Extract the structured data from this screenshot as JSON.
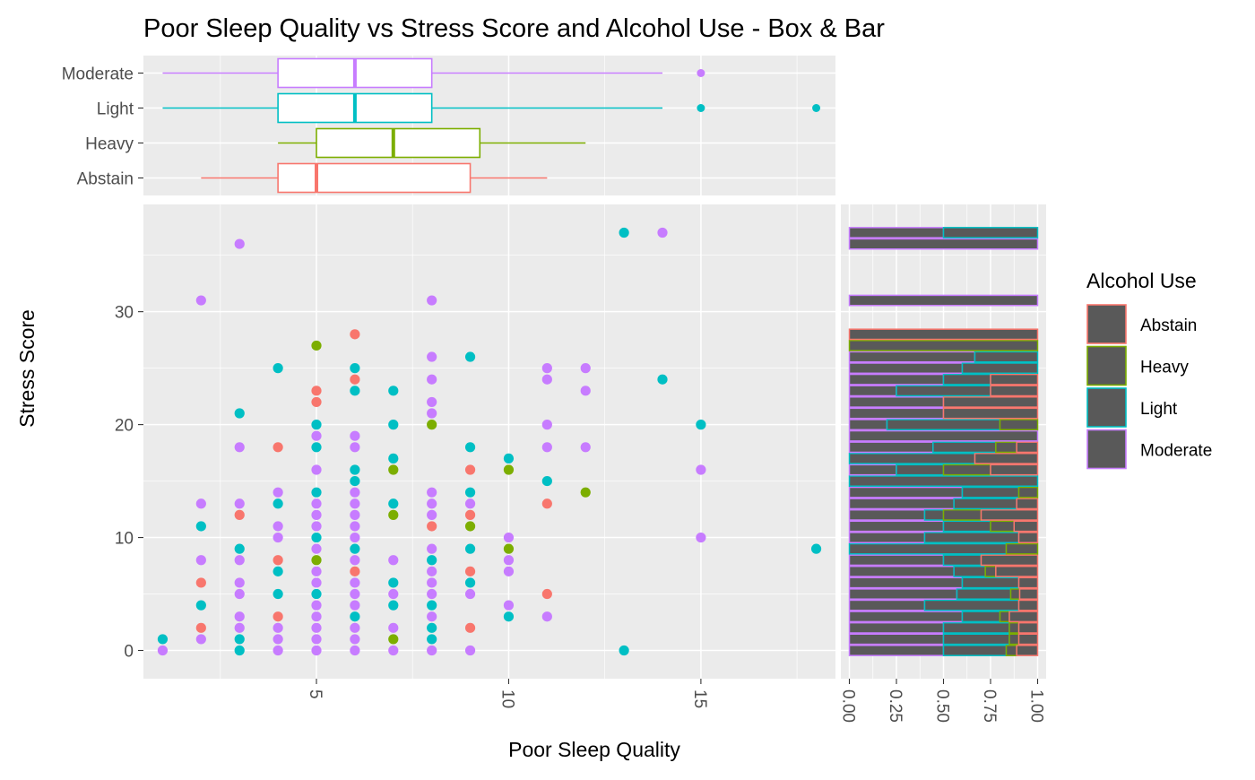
{
  "chart_data": {
    "type": "scatter",
    "title": "Poor Sleep Quality vs Stress Score and Alcohol Use - Box & Bar",
    "xlabel": "Poor Sleep Quality",
    "ylabel": "Stress Score",
    "xlim": [
      0.5,
      18.5
    ],
    "ylim": [
      -2.5,
      39.5
    ],
    "x_ticks": [
      5,
      10,
      15
    ],
    "x_tick_labels": [
      "5",
      "10",
      "15"
    ],
    "y_ticks": [
      0,
      10,
      20,
      30
    ],
    "y_tick_labels": [
      "0",
      "10",
      "20",
      "30"
    ],
    "grid": true,
    "legend": {
      "title": "Alcohol Use",
      "position": "right",
      "entries": [
        "Abstain",
        "Heavy",
        "Light",
        "Moderate"
      ]
    },
    "colors": {
      "Abstain": "#F8766D",
      "Heavy": "#7CAE00",
      "Light": "#00BFC4",
      "Moderate": "#C77CFF",
      "bar_fill": "#595959",
      "panel": "#EBEBEB"
    },
    "series": [
      {
        "name": "Abstain",
        "points": [
          [
            2,
            2
          ],
          [
            2,
            6
          ],
          [
            3,
            12
          ],
          [
            4,
            3
          ],
          [
            4,
            8
          ],
          [
            4,
            18
          ],
          [
            5,
            22
          ],
          [
            5,
            23
          ],
          [
            6,
            7
          ],
          [
            6,
            24
          ],
          [
            6,
            28
          ],
          [
            8,
            11
          ],
          [
            9,
            2
          ],
          [
            9,
            7
          ],
          [
            9,
            12
          ],
          [
            9,
            16
          ],
          [
            11,
            5
          ],
          [
            11,
            13
          ]
        ]
      },
      {
        "name": "Heavy",
        "points": [
          [
            5,
            8
          ],
          [
            5,
            27
          ],
          [
            7,
            1
          ],
          [
            7,
            12
          ],
          [
            7,
            16
          ],
          [
            8,
            20
          ],
          [
            9,
            11
          ],
          [
            10,
            9
          ],
          [
            10,
            16
          ],
          [
            12,
            14
          ]
        ]
      },
      {
        "name": "Light",
        "points": [
          [
            1,
            1
          ],
          [
            2,
            4
          ],
          [
            2,
            11
          ],
          [
            3,
            0
          ],
          [
            3,
            1
          ],
          [
            3,
            9
          ],
          [
            3,
            21
          ],
          [
            4,
            5
          ],
          [
            4,
            7
          ],
          [
            4,
            13
          ],
          [
            4,
            25
          ],
          [
            5,
            5
          ],
          [
            5,
            10
          ],
          [
            5,
            14
          ],
          [
            5,
            18
          ],
          [
            5,
            20
          ],
          [
            6,
            3
          ],
          [
            6,
            9
          ],
          [
            6,
            15
          ],
          [
            6,
            16
          ],
          [
            6,
            23
          ],
          [
            6,
            25
          ],
          [
            7,
            4
          ],
          [
            7,
            6
          ],
          [
            7,
            13
          ],
          [
            7,
            17
          ],
          [
            7,
            20
          ],
          [
            7,
            23
          ],
          [
            8,
            1
          ],
          [
            8,
            2
          ],
          [
            8,
            4
          ],
          [
            8,
            8
          ],
          [
            9,
            6
          ],
          [
            9,
            9
          ],
          [
            9,
            14
          ],
          [
            9,
            18
          ],
          [
            9,
            26
          ],
          [
            10,
            3
          ],
          [
            10,
            17
          ],
          [
            11,
            15
          ],
          [
            13,
            0
          ],
          [
            13,
            37
          ],
          [
            14,
            24
          ],
          [
            15,
            20
          ],
          [
            18,
            9
          ]
        ]
      },
      {
        "name": "Moderate",
        "points": [
          [
            1,
            0
          ],
          [
            2,
            1
          ],
          [
            2,
            8
          ],
          [
            2,
            13
          ],
          [
            2,
            31
          ],
          [
            3,
            2
          ],
          [
            3,
            3
          ],
          [
            3,
            5
          ],
          [
            3,
            6
          ],
          [
            3,
            8
          ],
          [
            3,
            13
          ],
          [
            3,
            18
          ],
          [
            3,
            36
          ],
          [
            4,
            0
          ],
          [
            4,
            1
          ],
          [
            4,
            2
          ],
          [
            4,
            10
          ],
          [
            4,
            11
          ],
          [
            4,
            14
          ],
          [
            5,
            0
          ],
          [
            5,
            1
          ],
          [
            5,
            2
          ],
          [
            5,
            3
          ],
          [
            5,
            4
          ],
          [
            5,
            6
          ],
          [
            5,
            7
          ],
          [
            5,
            9
          ],
          [
            5,
            11
          ],
          [
            5,
            12
          ],
          [
            5,
            13
          ],
          [
            5,
            16
          ],
          [
            5,
            19
          ],
          [
            6,
            0
          ],
          [
            6,
            1
          ],
          [
            6,
            2
          ],
          [
            6,
            4
          ],
          [
            6,
            5
          ],
          [
            6,
            6
          ],
          [
            6,
            8
          ],
          [
            6,
            10
          ],
          [
            6,
            11
          ],
          [
            6,
            12
          ],
          [
            6,
            13
          ],
          [
            6,
            14
          ],
          [
            6,
            18
          ],
          [
            6,
            19
          ],
          [
            7,
            0
          ],
          [
            7,
            2
          ],
          [
            7,
            5
          ],
          [
            7,
            8
          ],
          [
            8,
            0
          ],
          [
            8,
            3
          ],
          [
            8,
            5
          ],
          [
            8,
            6
          ],
          [
            8,
            7
          ],
          [
            8,
            9
          ],
          [
            8,
            12
          ],
          [
            8,
            13
          ],
          [
            8,
            14
          ],
          [
            8,
            21
          ],
          [
            8,
            22
          ],
          [
            8,
            24
          ],
          [
            8,
            26
          ],
          [
            8,
            31
          ],
          [
            9,
            0
          ],
          [
            9,
            5
          ],
          [
            9,
            13
          ],
          [
            10,
            7
          ],
          [
            10,
            8
          ],
          [
            10,
            10
          ],
          [
            10,
            4
          ],
          [
            11,
            3
          ],
          [
            11,
            18
          ],
          [
            11,
            20
          ],
          [
            11,
            24
          ],
          [
            11,
            25
          ],
          [
            12,
            18
          ],
          [
            12,
            23
          ],
          [
            12,
            25
          ],
          [
            14,
            37
          ],
          [
            15,
            10
          ],
          [
            15,
            16
          ]
        ]
      }
    ],
    "box_panel": {
      "type": "box",
      "categories": [
        "Moderate",
        "Light",
        "Heavy",
        "Abstain"
      ],
      "boxes": [
        {
          "name": "Moderate",
          "whisker_low": 1,
          "q1": 4,
          "median": 6,
          "q3": 8,
          "whisker_high": 14,
          "outliers": [
            15
          ]
        },
        {
          "name": "Light",
          "whisker_low": 1,
          "q1": 4,
          "median": 6,
          "q3": 8,
          "whisker_high": 14,
          "outliers": [
            15,
            18
          ]
        },
        {
          "name": "Heavy",
          "whisker_low": 4,
          "q1": 5,
          "median": 7,
          "q3": 9.25,
          "whisker_high": 12,
          "outliers": []
        },
        {
          "name": "Abstain",
          "whisker_low": 2,
          "q1": 4,
          "median": 5,
          "q3": 9,
          "whisker_high": 11,
          "outliers": []
        }
      ]
    },
    "bar_panel": {
      "type": "bar",
      "orientation": "horizontal",
      "position": "fill",
      "xlim": [
        0,
        1
      ],
      "x_ticks": [
        0,
        0.25,
        0.5,
        0.75,
        1
      ],
      "x_tick_labels": [
        "0.00",
        "0.25",
        "0.50",
        "0.75",
        "1.00"
      ],
      "stack_order": [
        "Moderate",
        "Light",
        "Heavy",
        "Abstain"
      ],
      "bars": [
        {
          "y": 0,
          "counts": {
            "Moderate": 4.5,
            "Light": 3,
            "Heavy": 0.5,
            "Abstain": 1
          }
        },
        {
          "y": 1,
          "counts": {
            "Moderate": 5,
            "Light": 3.5,
            "Heavy": 0.5,
            "Abstain": 1
          }
        },
        {
          "y": 2,
          "counts": {
            "Moderate": 5,
            "Light": 3.5,
            "Heavy": 0.5,
            "Abstain": 1
          }
        },
        {
          "y": 3,
          "counts": {
            "Moderate": 6,
            "Light": 2,
            "Heavy": 0.5,
            "Abstain": 1.5
          }
        },
        {
          "y": 4,
          "counts": {
            "Moderate": 4,
            "Light": 5,
            "Heavy": 0,
            "Abstain": 1
          }
        },
        {
          "y": 5,
          "counts": {
            "Moderate": 6,
            "Light": 3,
            "Heavy": 0.5,
            "Abstain": 1
          }
        },
        {
          "y": 6,
          "counts": {
            "Moderate": 6,
            "Light": 3,
            "Heavy": 0,
            "Abstain": 1
          }
        },
        {
          "y": 7,
          "counts": {
            "Moderate": 5,
            "Light": 1.5,
            "Heavy": 0.5,
            "Abstain": 2
          }
        },
        {
          "y": 8,
          "counts": {
            "Moderate": 5,
            "Light": 2,
            "Heavy": 0,
            "Abstain": 3
          }
        },
        {
          "y": 9,
          "counts": {
            "Moderate": 0,
            "Light": 5,
            "Heavy": 1,
            "Abstain": 0
          }
        },
        {
          "y": 10,
          "counts": {
            "Moderate": 4,
            "Light": 5,
            "Heavy": 0,
            "Abstain": 1
          }
        },
        {
          "y": 11,
          "counts": {
            "Moderate": 4,
            "Light": 2,
            "Heavy": 1,
            "Abstain": 1
          }
        },
        {
          "y": 12,
          "counts": {
            "Moderate": 4,
            "Light": 1,
            "Heavy": 2,
            "Abstain": 3
          }
        },
        {
          "y": 13,
          "counts": {
            "Moderate": 5,
            "Light": 3,
            "Heavy": 0,
            "Abstain": 1
          }
        },
        {
          "y": 14,
          "counts": {
            "Moderate": 6,
            "Light": 3,
            "Heavy": 1,
            "Abstain": 0
          }
        },
        {
          "y": 15,
          "counts": {
            "Moderate": 0,
            "Light": 2,
            "Heavy": 0,
            "Abstain": 0
          }
        },
        {
          "y": 16,
          "counts": {
            "Moderate": 1,
            "Light": 1,
            "Heavy": 1,
            "Abstain": 1
          }
        },
        {
          "y": 17,
          "counts": {
            "Moderate": 0,
            "Light": 2,
            "Heavy": 0,
            "Abstain": 1
          }
        },
        {
          "y": 18,
          "counts": {
            "Moderate": 4,
            "Light": 3,
            "Heavy": 1,
            "Abstain": 1
          }
        },
        {
          "y": 19,
          "counts": {
            "Moderate": 1,
            "Light": 0,
            "Heavy": 0,
            "Abstain": 0
          }
        },
        {
          "y": 20,
          "counts": {
            "Moderate": 1,
            "Light": 3,
            "Heavy": 1,
            "Abstain": 0
          }
        },
        {
          "y": 21,
          "counts": {
            "Moderate": 2,
            "Light": 0,
            "Heavy": 0,
            "Abstain": 2
          }
        },
        {
          "y": 22,
          "counts": {
            "Moderate": 1,
            "Light": 0,
            "Heavy": 0,
            "Abstain": 1
          }
        },
        {
          "y": 23,
          "counts": {
            "Moderate": 1,
            "Light": 2,
            "Heavy": 0,
            "Abstain": 1
          }
        },
        {
          "y": 24,
          "counts": {
            "Moderate": 2,
            "Light": 1,
            "Heavy": 0,
            "Abstain": 1
          }
        },
        {
          "y": 25,
          "counts": {
            "Moderate": 3,
            "Light": 2,
            "Heavy": 0,
            "Abstain": 0
          }
        },
        {
          "y": 26,
          "counts": {
            "Moderate": 2,
            "Light": 1,
            "Heavy": 0,
            "Abstain": 0
          }
        },
        {
          "y": 27,
          "counts": {
            "Moderate": 0,
            "Light": 0,
            "Heavy": 1,
            "Abstain": 0
          }
        },
        {
          "y": 28,
          "counts": {
            "Moderate": 0,
            "Light": 0,
            "Heavy": 0,
            "Abstain": 1
          }
        },
        {
          "y": 31,
          "counts": {
            "Moderate": 2,
            "Light": 0,
            "Heavy": 0,
            "Abstain": 0
          }
        },
        {
          "y": 36,
          "counts": {
            "Moderate": 1,
            "Light": 0,
            "Heavy": 0,
            "Abstain": 0
          }
        },
        {
          "y": 37,
          "counts": {
            "Moderate": 1,
            "Light": 1,
            "Heavy": 0,
            "Abstain": 0
          }
        }
      ]
    }
  }
}
